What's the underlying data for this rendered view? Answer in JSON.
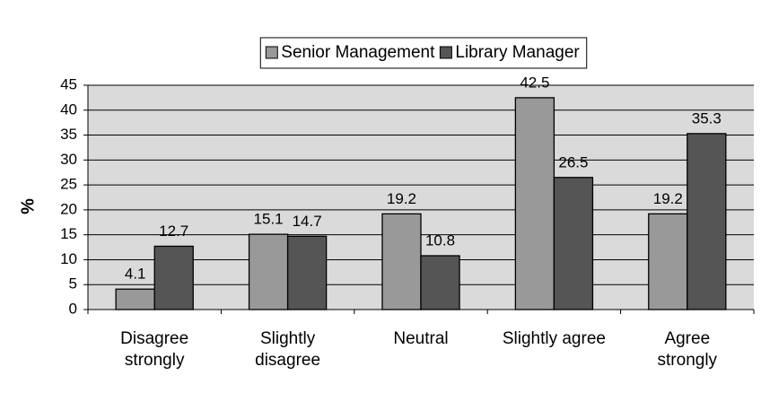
{
  "chart_data": {
    "type": "bar",
    "categories": [
      "Disagree strongly",
      "Slightly disagree",
      "Neutral",
      "Slightly agree",
      "Agree strongly"
    ],
    "series": [
      {
        "name": "Senior Management",
        "color": "#999999",
        "values": [
          4.1,
          15.1,
          19.2,
          42.5,
          19.2
        ]
      },
      {
        "name": "Library Manager",
        "color": "#555555",
        "values": [
          12.7,
          14.7,
          10.8,
          26.5,
          35.3
        ]
      }
    ],
    "y_label": "%",
    "ylim": [
      0,
      45
    ],
    "yticks": [
      0,
      5,
      10,
      15,
      20,
      25,
      30,
      35,
      40,
      45
    ],
    "grid": true,
    "legend": "top"
  }
}
